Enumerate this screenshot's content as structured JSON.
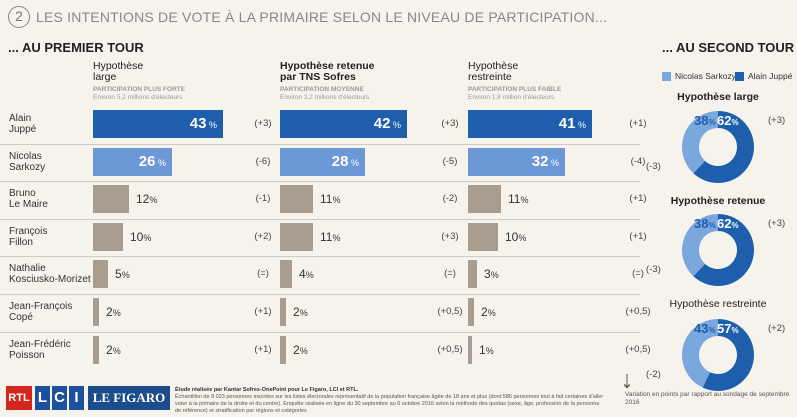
{
  "header": {
    "number": "2",
    "title": "LES INTENTIONS DE VOTE À LA PRIMAIRE SELON LE NIVEAU DE PARTICIPATION..."
  },
  "first_round": {
    "title": "... AU PREMIER TOUR",
    "columns": [
      {
        "title": "Hypothèse\nlarge",
        "bold": false,
        "sub1": "PARTICIPATION PLUS FORTE",
        "sub2": "Environ 5,2 millions d'électeurs"
      },
      {
        "title": "Hypothèse retenue\npar TNS Sofres",
        "bold": true,
        "sub1": "PARTICIPATION MOYENNE",
        "sub2": "Environ 3,2 millions d'électeurs"
      },
      {
        "title": "Hypothèse\nrestreinte",
        "bold": false,
        "sub1": "PARTICIPATION PLUS FAIBLE",
        "sub2": "Environ 1,8 million d'électeurs"
      }
    ]
  },
  "chart_data": {
    "type": "bar",
    "categories": [
      "Alain\nJuppé",
      "Nicolas\nSarkozy",
      "Bruno\nLe Maire",
      "François\nFillon",
      "Nathalie\nKosciusko-Morizet",
      "Jean-François\nCopé",
      "Jean-Frédéric\nPoisson"
    ],
    "series": [
      {
        "values": [
          43,
          26,
          12,
          10,
          5,
          2,
          2
        ],
        "variations": [
          "(+3)",
          "(-6)",
          "(-1)",
          "(+2)",
          "(=)",
          "(+1)",
          "(+1)"
        ]
      },
      {
        "values": [
          42,
          28,
          11,
          11,
          4,
          2,
          2
        ],
        "variations": [
          "(+3)",
          "(-5)",
          "(-2)",
          "(+3)",
          "(=)",
          "(+0,5)",
          "(+0,5)"
        ]
      },
      {
        "values": [
          41,
          32,
          11,
          10,
          3,
          2,
          1
        ],
        "variations": [
          "(+1)",
          "(-4)",
          "(+1)",
          "(+1)",
          "(=)",
          "(+0,5)",
          "(+0,5)"
        ]
      }
    ],
    "unit": "%",
    "colors": {
      "juppe": "#1d5fad",
      "sarkozy": "#6c98d8",
      "other": "#a89d8f"
    }
  },
  "second_round": {
    "title": "... AU SECOND TOUR",
    "legend": [
      {
        "label": "Nicolas Sarkozy",
        "color": "#7aa7de"
      },
      {
        "label": "Alain Juppé",
        "color": "#1d5fad"
      }
    ],
    "donuts": [
      {
        "title": "Hypothèse large",
        "bold": true,
        "sarkozy": 38,
        "juppe": 62,
        "var_juppe": "(+3)",
        "var_sarkozy": "(-3)"
      },
      {
        "title": "Hypothèse retenue",
        "bold": true,
        "sarkozy": 38,
        "juppe": 62,
        "var_juppe": "(+3)",
        "var_sarkozy": "(-3)"
      },
      {
        "title": "Hypothèse restreinte",
        "bold": false,
        "sarkozy": 43,
        "juppe": 57,
        "var_juppe": "(+2)",
        "var_sarkozy": "(-2)"
      }
    ]
  },
  "footer": {
    "logos": {
      "rtl": "RTL",
      "l": "L",
      "c": "C",
      "i": "I",
      "figaro": "LE FIGARO"
    },
    "source_bold": "Étude réalisée par Kantar Sofres-OnePoint pour Le Figaro, LCI et RTL.",
    "source_text": "Échantillon de 8 023 personnes inscrites sur les listes électorales représentatif de la population française âgée de 18 ans et plus (dont 586 personnes tout à fait certaines d'aller voter à la primaire de la droite et du centre). Enquête réalisée en ligne du 30 septembre au 6 octobre 2016 selon la méthode des quotas (sexe, âge, profession de la personne de référence) et stratification par régions et catégories",
    "variation_note": "Variation en points par rapport au sondage de septembre 2016"
  }
}
